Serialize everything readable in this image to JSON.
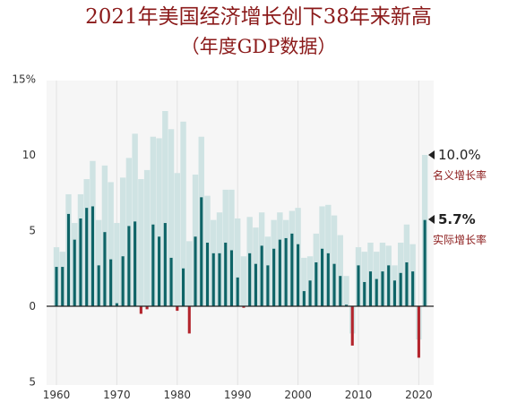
{
  "chart_data": {
    "type": "bar",
    "title": "2021年美国经济增长创下38年来新高",
    "subtitle": "（年度GDP数据）",
    "x": [
      1960,
      1961,
      1962,
      1963,
      1964,
      1965,
      1966,
      1967,
      1968,
      1969,
      1970,
      1971,
      1972,
      1973,
      1974,
      1975,
      1976,
      1977,
      1978,
      1979,
      1980,
      1981,
      1982,
      1983,
      1984,
      1985,
      1986,
      1987,
      1988,
      1989,
      1990,
      1991,
      1992,
      1993,
      1994,
      1995,
      1996,
      1997,
      1998,
      1999,
      2000,
      2001,
      2002,
      2003,
      2004,
      2005,
      2006,
      2007,
      2008,
      2009,
      2010,
      2011,
      2012,
      2013,
      2014,
      2015,
      2016,
      2017,
      2018,
      2019,
      2020,
      2021
    ],
    "series": [
      {
        "name": "名义增长率",
        "color": "#cfe3e3",
        "values": [
          3.9,
          3.6,
          7.4,
          5.5,
          7.4,
          8.4,
          9.6,
          5.7,
          9.3,
          8.2,
          5.5,
          8.5,
          9.8,
          11.4,
          8.4,
          9.0,
          11.2,
          11.1,
          12.9,
          11.7,
          8.8,
          12.2,
          4.3,
          8.7,
          11.2,
          7.3,
          5.7,
          6.2,
          7.7,
          7.7,
          5.8,
          3.3,
          5.9,
          5.2,
          6.2,
          4.6,
          5.7,
          6.2,
          5.7,
          6.3,
          6.5,
          3.2,
          3.3,
          4.8,
          6.6,
          6.7,
          6.0,
          4.7,
          2.0,
          -1.8,
          3.9,
          3.6,
          4.2,
          3.6,
          4.2,
          4.0,
          2.7,
          4.2,
          5.4,
          4.1,
          -2.2,
          10.0
        ]
      },
      {
        "name": "实际增长率",
        "color": "#0e6467",
        "neg_color": "#b3242c",
        "values": [
          2.6,
          2.6,
          6.1,
          4.4,
          5.8,
          6.5,
          6.6,
          2.7,
          4.9,
          3.1,
          0.2,
          3.3,
          5.3,
          5.6,
          -0.5,
          -0.2,
          5.4,
          4.6,
          5.5,
          3.2,
          -0.3,
          2.5,
          -1.8,
          4.6,
          7.2,
          4.2,
          3.5,
          3.5,
          4.2,
          3.7,
          1.9,
          -0.1,
          3.5,
          2.8,
          4.0,
          2.7,
          3.8,
          4.4,
          4.5,
          4.8,
          4.1,
          1.0,
          1.7,
          2.9,
          3.8,
          3.5,
          2.8,
          2.0,
          0.1,
          -2.6,
          2.7,
          1.6,
          2.3,
          1.8,
          2.3,
          2.7,
          1.7,
          2.2,
          2.9,
          2.3,
          -3.4,
          5.7
        ]
      }
    ],
    "y_tick_labels": [
      "15%",
      "10",
      "5",
      "0",
      "5"
    ],
    "x_tick_labels": [
      "1960",
      "1970",
      "1980",
      "1990",
      "2000",
      "2010",
      "2020"
    ],
    "ylim": [
      -5,
      15
    ],
    "end_labels": [
      {
        "value": "10.0%",
        "label": "名义增长率"
      },
      {
        "value": "5.7%",
        "label": "实际增长率"
      }
    ],
    "grid": "vertical"
  }
}
